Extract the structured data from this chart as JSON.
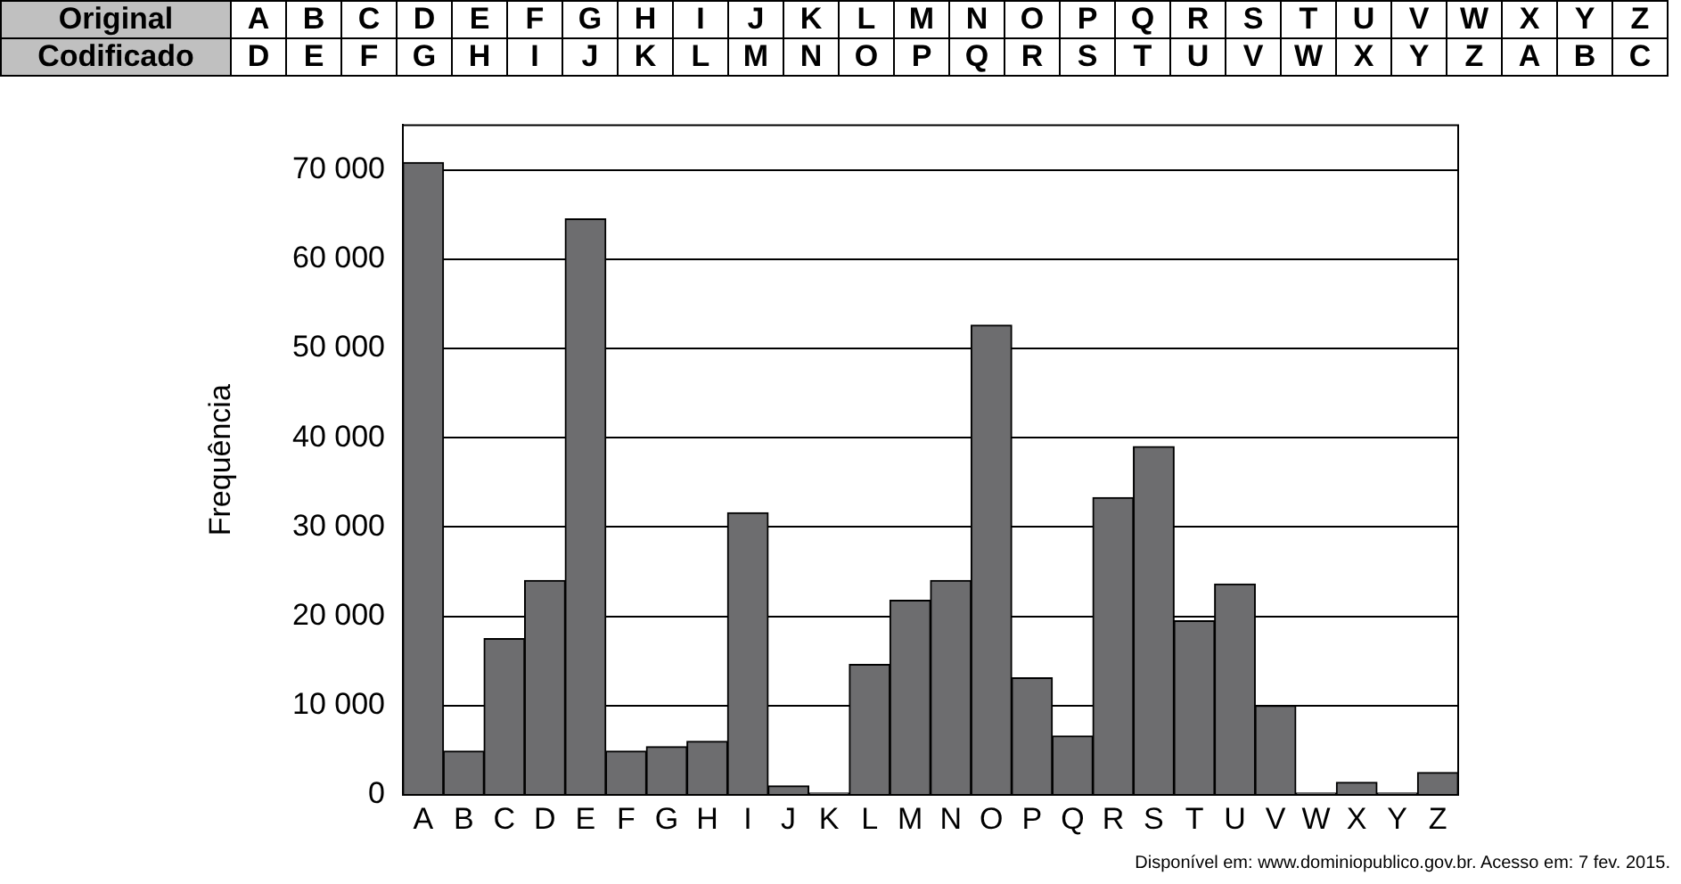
{
  "chart_data": {
    "type": "bar",
    "ylabel": "Frequência",
    "categories": [
      "A",
      "B",
      "C",
      "D",
      "E",
      "F",
      "G",
      "H",
      "I",
      "J",
      "K",
      "L",
      "M",
      "N",
      "O",
      "P",
      "Q",
      "R",
      "S",
      "T",
      "U",
      "V",
      "W",
      "X",
      "Y",
      "Z"
    ],
    "values": [
      70800,
      4900,
      17500,
      24000,
      64500,
      4900,
      5400,
      6000,
      31600,
      1000,
      200,
      14600,
      21800,
      24000,
      52600,
      13100,
      6600,
      33300,
      39000,
      19500,
      23600,
      10000,
      200,
      1400,
      200,
      2500
    ],
    "color": "#6d6d6f",
    "ylim": [
      0,
      75000
    ],
    "yticks": [
      {
        "value": 0,
        "label": "0"
      },
      {
        "value": 10000,
        "label": "10 000"
      },
      {
        "value": 20000,
        "label": "20 000"
      },
      {
        "value": 30000,
        "label": "30 000"
      },
      {
        "value": 40000,
        "label": "40 000"
      },
      {
        "value": 50000,
        "label": "50 000"
      },
      {
        "value": 60000,
        "label": "60 000"
      },
      {
        "value": 70000,
        "label": "70 000"
      }
    ],
    "grid": "y",
    "annotations": [
      "Original",
      "A",
      "B",
      "C",
      "D",
      "E",
      "F",
      "G",
      "H",
      "I",
      "J",
      "K",
      "L",
      "M",
      "N",
      "O",
      "P",
      "Q",
      "R",
      "S",
      "T",
      "U",
      "V",
      "W",
      "X",
      "Y",
      "Z",
      "Codificado",
      "D",
      "E",
      "F",
      "G",
      "H",
      "I",
      "J",
      "K",
      "L",
      "M",
      "N",
      "O",
      "P",
      "Q",
      "R",
      "S",
      "T",
      "U",
      "V",
      "W",
      "X",
      "Y",
      "Z",
      "A",
      "B",
      "C",
      "Disponível em: www.dominiopublico.gov.br. Acesso em: 7 fev. 2015."
    ]
  }
}
